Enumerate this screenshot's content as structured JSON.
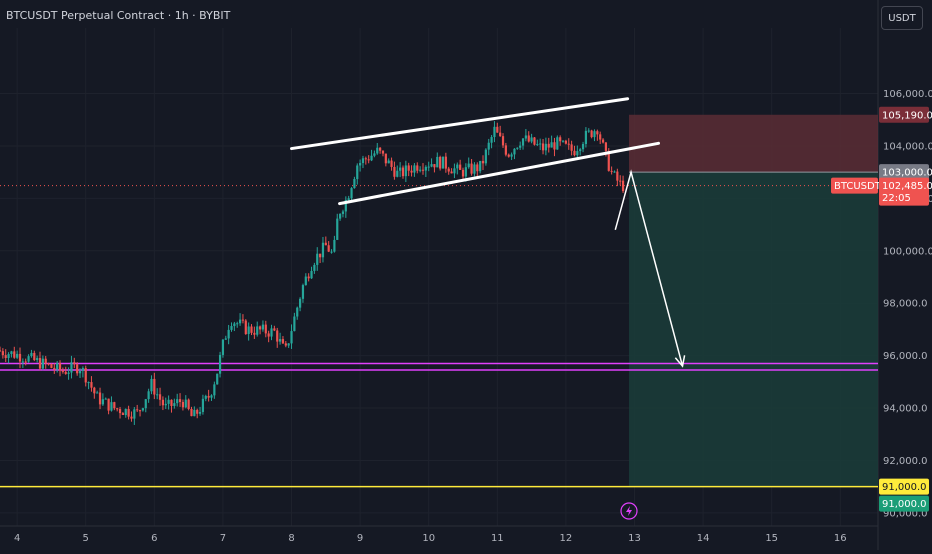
{
  "header": {
    "title": "BTCUSDT Perpetual Contract · 1h · BYBIT",
    "currency": "USDT"
  },
  "colors": {
    "background": "#151924",
    "up": "#26a69a",
    "down": "#ef5350",
    "support": "#e040fb",
    "target_line": "#ffeb3b",
    "stop_zone": "#5b2d35",
    "profit_zone": "#193b38"
  },
  "chart_data": {
    "type": "candlestick",
    "x_ticks": [
      "4",
      "5",
      "6",
      "7",
      "8",
      "9",
      "10",
      "11",
      "12",
      "13",
      "14",
      "15",
      "16"
    ],
    "y_ticks": [
      "90,000.0",
      "92,000.0",
      "94,000.0",
      "96,000.0",
      "98,000.0",
      "100,000.0",
      "102,000.0",
      "104,000.0",
      "106,000.0"
    ],
    "ylim": [
      89500,
      108500
    ],
    "xlim": [
      3.75,
      16.55
    ],
    "price_labels": {
      "stop": "105,190.0",
      "entry": "103,000.0",
      "symbol": "BTCUSDT.P",
      "last": "102,485.0",
      "countdown": "22:05",
      "target_1": "91,000.0",
      "target_2": "91,000.0"
    },
    "levels": {
      "stop": 105190,
      "entry": 103000,
      "last": 102485,
      "target": 91000,
      "support_upper": 95700,
      "support_lower": 95450
    },
    "position": {
      "x_start": 12.92,
      "x_end": 16.55
    },
    "channel": {
      "upper": [
        [
          8.0,
          103900
        ],
        [
          12.9,
          105800
        ]
      ],
      "lower": [
        [
          8.7,
          101800
        ],
        [
          13.35,
          104100
        ]
      ]
    },
    "projection": [
      [
        12.72,
        100800
      ],
      [
        12.95,
        103000
      ],
      [
        13.7,
        95600
      ]
    ],
    "anchors": [
      [
        3.75,
        96200
      ],
      [
        4.1,
        96000
      ],
      [
        4.4,
        95700
      ],
      [
        4.7,
        95400
      ],
      [
        4.95,
        95600
      ],
      [
        5.05,
        95200
      ],
      [
        5.2,
        94400
      ],
      [
        5.45,
        94000
      ],
      [
        5.8,
        93800
      ],
      [
        6.0,
        94900
      ],
      [
        6.2,
        94000
      ],
      [
        6.45,
        94300
      ],
      [
        6.6,
        93600
      ],
      [
        6.85,
        94500
      ],
      [
        6.95,
        95300
      ],
      [
        7.05,
        96500
      ],
      [
        7.15,
        97400
      ],
      [
        7.4,
        97000
      ],
      [
        7.8,
        96900
      ],
      [
        7.95,
        96100
      ],
      [
        8.05,
        97100
      ],
      [
        8.2,
        98600
      ],
      [
        8.35,
        99600
      ],
      [
        8.55,
        100200
      ],
      [
        8.65,
        99800
      ],
      [
        8.72,
        101400
      ],
      [
        8.85,
        102000
      ],
      [
        9.0,
        103300
      ],
      [
        9.3,
        103800
      ],
      [
        9.6,
        102900
      ],
      [
        9.9,
        103300
      ],
      [
        10.2,
        103400
      ],
      [
        10.5,
        103000
      ],
      [
        10.8,
        103200
      ],
      [
        11.0,
        104600
      ],
      [
        11.2,
        103700
      ],
      [
        11.4,
        104300
      ],
      [
        11.7,
        103900
      ],
      [
        11.9,
        104100
      ],
      [
        12.15,
        103800
      ],
      [
        12.3,
        104300
      ],
      [
        12.5,
        104700
      ],
      [
        12.62,
        103600
      ],
      [
        12.72,
        102900
      ],
      [
        12.85,
        102485
      ]
    ]
  }
}
